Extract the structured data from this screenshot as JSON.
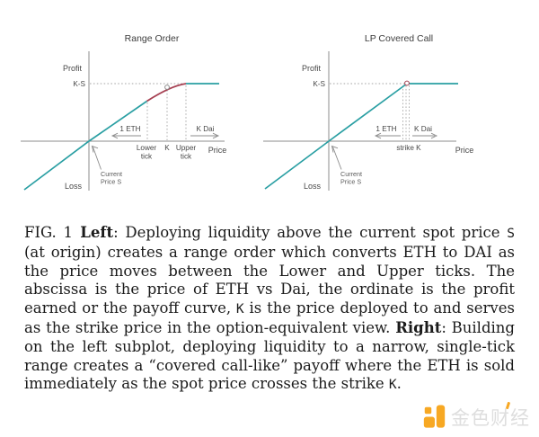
{
  "figure": {
    "left_chart": {
      "title": "Range Order",
      "profit_label": "Profit",
      "loss_label": "Loss",
      "ks_label": "K-S",
      "price_label": "Price",
      "eth_label": "1 ETH",
      "dai_label": "K Dai",
      "lower_tick": [
        "Lower",
        "tick"
      ],
      "k_tick": "K",
      "upper_tick": [
        "Upper",
        "tick"
      ],
      "current_price": [
        "Current",
        "Price S"
      ]
    },
    "right_chart": {
      "title": "LP Covered Call",
      "profit_label": "Profit",
      "loss_label": "Loss",
      "ks_label": "K-S",
      "price_label": "Price",
      "eth_label": "1 ETH",
      "dai_label": "K Dai",
      "strike_label": "strike K",
      "current_price": [
        "Current",
        "Price S"
      ]
    },
    "colors": {
      "payoff_teal": "#2a9fa3",
      "range_order_red": "#a64052",
      "axis_gray": "#8c8c8c",
      "label_gray": "#474747"
    }
  },
  "chart_data": [
    {
      "type": "line",
      "title": "Range Order",
      "xlabel": "Price",
      "ylabel": "Profit (top) / Loss (bottom)",
      "series": [
        {
          "name": "LP range-order payoff",
          "shape": "linear through origin (Current Price S), concave curve between Lower tick and Upper tick, flat at K-S above Upper tick",
          "key_points": [
            "origin = Current Price S, payoff 0",
            "Lower tick: curve begins",
            "K: marked point on curve",
            "Upper tick: payoff reaches K-S",
            "above Upper tick: constant K-S"
          ]
        }
      ],
      "annotations": [
        "K-S",
        "1 ETH (left arrow)",
        "K Dai (right arrow)",
        "Lower tick",
        "K",
        "Upper tick",
        "Current Price S"
      ],
      "grid": false,
      "legend": false
    },
    {
      "type": "line",
      "title": "LP Covered Call",
      "xlabel": "Price",
      "ylabel": "Profit (top) / Loss (bottom)",
      "series": [
        {
          "name": "LP covered-call payoff",
          "shape": "linear through origin (Current Price S), kink at strike K, flat at K-S above strike",
          "key_points": [
            "origin = Current Price S, payoff 0",
            "strike K: kink, payoff reaches K-S",
            "above strike K: constant K-S"
          ]
        }
      ],
      "annotations": [
        "K-S",
        "1 ETH (left arrow)",
        "K Dai (right arrow)",
        "strike K",
        "Current Price S"
      ],
      "grid": false,
      "legend": false
    }
  ],
  "caption": {
    "segments": [
      {
        "t": "FIG. 1 ",
        "f": "n"
      },
      {
        "t": "Left",
        "f": "b"
      },
      {
        "t": ": Deploying liquidity above the current spot price ",
        "f": "n"
      },
      {
        "t": "S",
        "f": "m"
      },
      {
        "t": " (at origin) creates a range order which converts ETH to DAI as the price moves between the Lower and Upper ticks. The abscissa is the price of ETH vs Dai, the ordinate is the profit earned or the payoff curve, ",
        "f": "n"
      },
      {
        "t": "K",
        "f": "m"
      },
      {
        "t": " is the price deployed to and serves as the strike price in the option-equivalent view. ",
        "f": "n"
      },
      {
        "t": "Right",
        "f": "b"
      },
      {
        "t": ": Building on the left subplot, deploying liquidity to a narrow, single-tick range creates a “covered call-like” payoff where the ETH is sold immediately as the spot price crosses the strike ",
        "f": "n"
      },
      {
        "t": "K",
        "f": "m"
      },
      {
        "t": ".",
        "f": "n"
      }
    ]
  },
  "watermark": {
    "text": "金色财经",
    "brand_orange": "#f7a823",
    "text_color": "#dedede"
  }
}
